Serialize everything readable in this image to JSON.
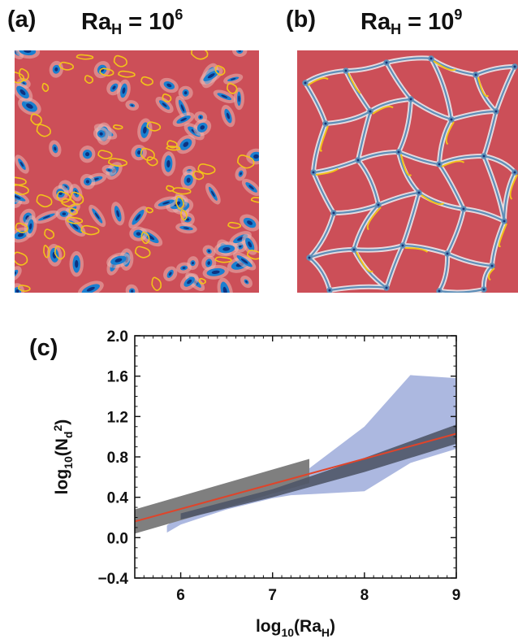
{
  "panels": {
    "a": {
      "label": "(a)",
      "title_main": "Ra",
      "title_sub": "H",
      "title_eq": " = 10",
      "title_exp": "6"
    },
    "b": {
      "label": "(b)",
      "title_main": "Ra",
      "title_sub": "H",
      "title_eq": " = 10",
      "title_exp": "9"
    },
    "c": {
      "label": "(c)"
    }
  },
  "colors": {
    "field_background": "#cc4f58",
    "cold_plume": "#1a7fd0",
    "contour": "#f2c31a",
    "fit_line": "#e0442a",
    "data_band": "#4f5668",
    "fit_band": "#7f7f7f",
    "spread_band": "#a3b0dd"
  },
  "chart_data": {
    "type": "area",
    "xlabel": {
      "main": "log",
      "sub": "10",
      "rest": "(Ra",
      "rest_sub": "H",
      "close": ")"
    },
    "ylabel": {
      "main": "log",
      "sub": "10",
      "rest": "(N",
      "rest_sub": "d",
      "rest_sup": "2",
      "close": ")"
    },
    "xlim": [
      5.5,
      9.0
    ],
    "ylim": [
      -0.4,
      2.0
    ],
    "x_ticks": [
      6,
      7,
      8,
      9
    ],
    "x_tick_labels": [
      "6",
      "7",
      "8",
      "9"
    ],
    "y_ticks": [
      -0.4,
      0.0,
      0.4,
      0.8,
      1.2,
      1.6,
      2.0
    ],
    "y_tick_labels": [
      "−0.4",
      "0.0",
      "0.4",
      "0.8",
      "1.2",
      "1.6",
      "2.0"
    ],
    "series": [
      {
        "kind": "band",
        "x": [
          5.85,
          6.0,
          6.5,
          7.0,
          7.2,
          8.0,
          8.5,
          9.0
        ],
        "lower": [
          0.05,
          0.13,
          0.28,
          0.39,
          0.42,
          0.46,
          0.74,
          0.88
        ],
        "upper": [
          0.12,
          0.22,
          0.33,
          0.43,
          0.55,
          1.1,
          1.61,
          1.58
        ]
      },
      {
        "kind": "band",
        "x": [
          5.5,
          7.4,
          7.4
        ],
        "lower": [
          0.04,
          0.54,
          0.54
        ],
        "upper": [
          0.28,
          0.78,
          0.78
        ]
      },
      {
        "kind": "band",
        "x": [
          6.0,
          7.0,
          8.0,
          9.0
        ],
        "lower": [
          0.18,
          0.4,
          0.65,
          0.93
        ],
        "upper": [
          0.24,
          0.48,
          0.79,
          1.12
        ]
      },
      {
        "kind": "line",
        "x": [
          5.5,
          9.0
        ],
        "y": [
          0.16,
          1.03
        ]
      }
    ]
  }
}
